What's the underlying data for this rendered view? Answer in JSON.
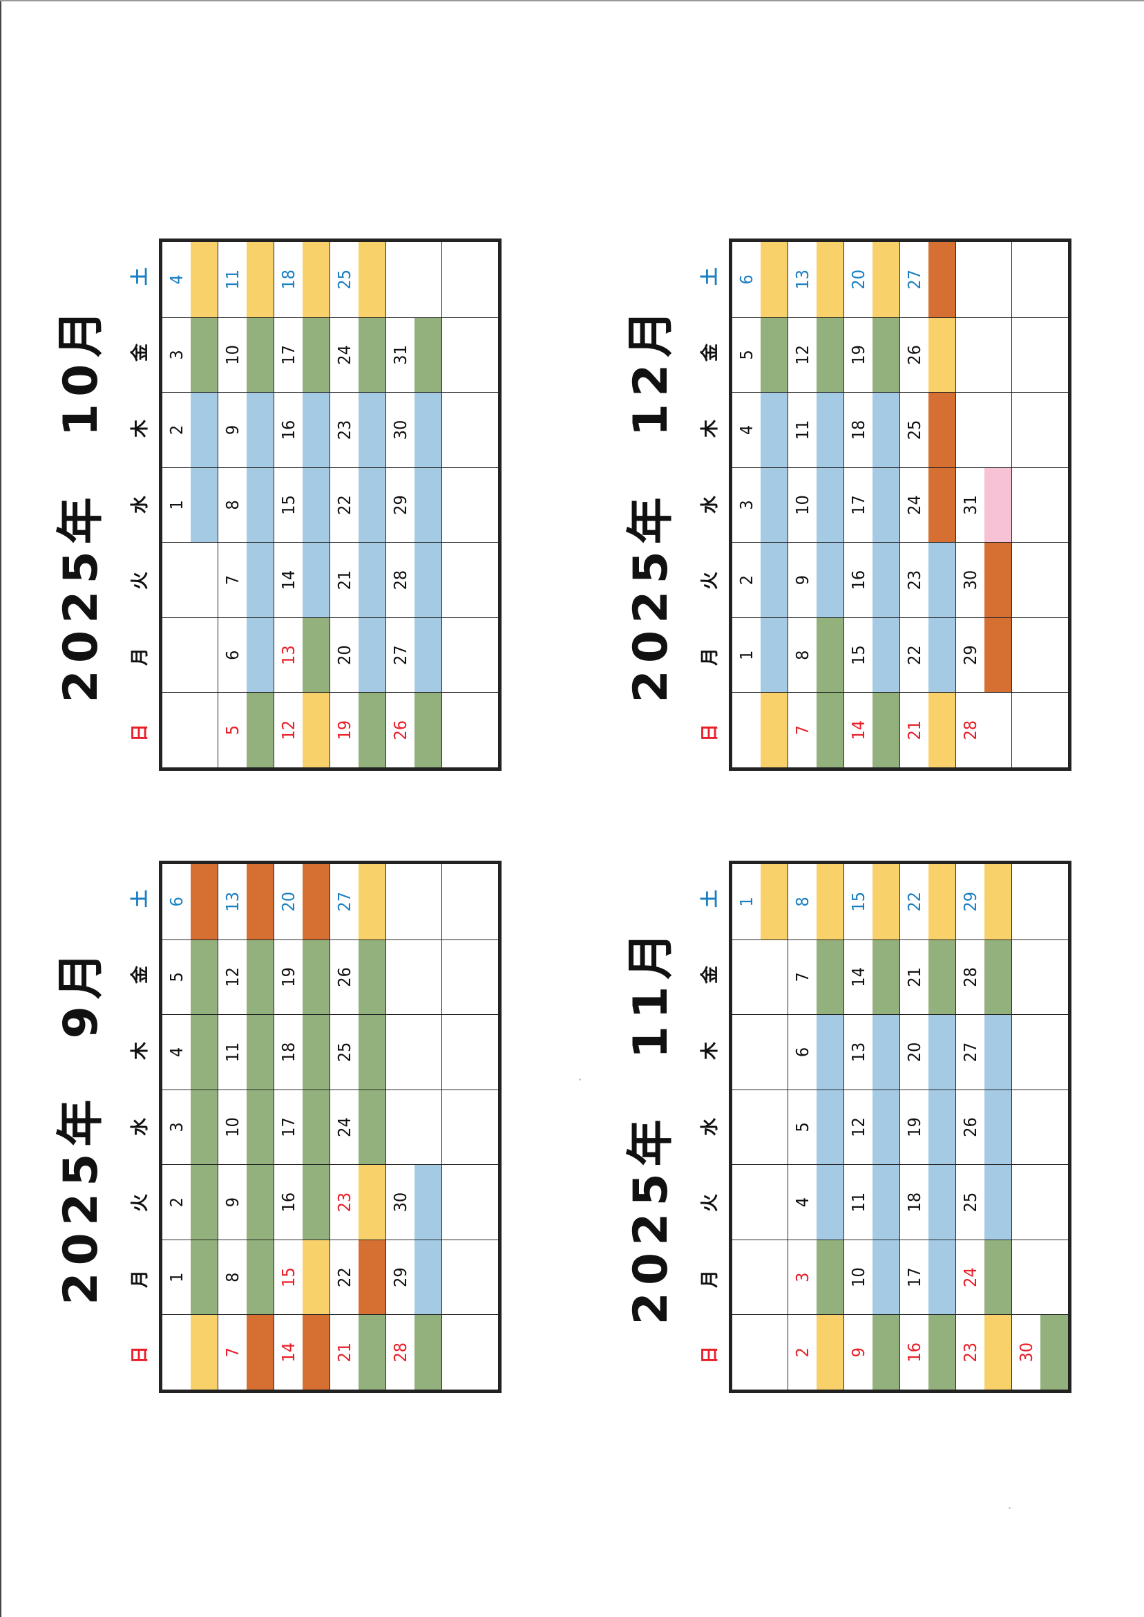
{
  "colors": {
    "G": "#93b17c",
    "B": "#a5cbe4",
    "Y": "#f9d16a",
    "O": "#d66f32",
    "P": "#f7c2d6",
    "W": "#ffffff",
    "sunday": "#e8202a",
    "saturday": "#1a7fc2"
  },
  "weekdays": [
    "日",
    "月",
    "火",
    "水",
    "木",
    "金",
    "土"
  ],
  "calendars": [
    {
      "title": "2025年　10月",
      "weeks": [
        {
          "days": [
            "",
            "",
            "",
            "1",
            "2",
            "3",
            "4"
          ],
          "text": [
            "B",
            "B",
            "B",
            "B",
            "B",
            "B",
            "S"
          ],
          "fills": [
            "W",
            "W",
            "W",
            "B",
            "B",
            "G",
            "Y"
          ]
        },
        {
          "days": [
            "5",
            "6",
            "7",
            "8",
            "9",
            "10",
            "11"
          ],
          "text": [
            "R",
            "K",
            "K",
            "K",
            "K",
            "K",
            "S"
          ],
          "fills": [
            "G",
            "B",
            "B",
            "B",
            "B",
            "G",
            "Y"
          ]
        },
        {
          "days": [
            "12",
            "13",
            "14",
            "15",
            "16",
            "17",
            "18"
          ],
          "text": [
            "R",
            "R",
            "K",
            "K",
            "K",
            "K",
            "S"
          ],
          "fills": [
            "Y",
            "G",
            "B",
            "B",
            "B",
            "G",
            "Y"
          ]
        },
        {
          "days": [
            "19",
            "20",
            "21",
            "22",
            "23",
            "24",
            "25"
          ],
          "text": [
            "R",
            "K",
            "K",
            "K",
            "K",
            "K",
            "S"
          ],
          "fills": [
            "G",
            "B",
            "B",
            "B",
            "B",
            "G",
            "Y"
          ]
        },
        {
          "days": [
            "26",
            "27",
            "28",
            "29",
            "30",
            "31",
            ""
          ],
          "text": [
            "R",
            "K",
            "K",
            "K",
            "K",
            "K",
            "K"
          ],
          "fills": [
            "G",
            "B",
            "B",
            "B",
            "B",
            "G",
            "W"
          ]
        },
        {
          "days": [
            "",
            "",
            "",
            "",
            "",
            "",
            ""
          ],
          "text": [
            "K",
            "K",
            "K",
            "K",
            "K",
            "K",
            "K"
          ],
          "fills": [
            "W",
            "W",
            "W",
            "W",
            "W",
            "W",
            "W"
          ]
        }
      ]
    },
    {
      "title": "2025年　9月",
      "weeks": [
        {
          "days": [
            "",
            "1",
            "2",
            "3",
            "4",
            "5",
            "6"
          ],
          "text": [
            "K",
            "K",
            "K",
            "K",
            "K",
            "K",
            "S"
          ],
          "fills": [
            "Y",
            "G",
            "G",
            "G",
            "G",
            "G",
            "O"
          ]
        },
        {
          "days": [
            "7",
            "8",
            "9",
            "10",
            "11",
            "12",
            "13"
          ],
          "text": [
            "R",
            "K",
            "K",
            "K",
            "K",
            "K",
            "S"
          ],
          "fills": [
            "O",
            "G",
            "G",
            "G",
            "G",
            "G",
            "O"
          ]
        },
        {
          "days": [
            "14",
            "15",
            "16",
            "17",
            "18",
            "19",
            "20"
          ],
          "text": [
            "R",
            "R",
            "K",
            "K",
            "K",
            "K",
            "S"
          ],
          "fills": [
            "O",
            "Y",
            "G",
            "G",
            "G",
            "G",
            "O"
          ]
        },
        {
          "days": [
            "21",
            "22",
            "23",
            "24",
            "25",
            "26",
            "27"
          ],
          "text": [
            "R",
            "K",
            "R",
            "K",
            "K",
            "K",
            "S"
          ],
          "fills": [
            "G",
            "O",
            "Y",
            "G",
            "G",
            "G",
            "Y"
          ]
        },
        {
          "days": [
            "28",
            "29",
            "30",
            "",
            "",
            "",
            ""
          ],
          "text": [
            "R",
            "K",
            "K",
            "K",
            "K",
            "K",
            "K"
          ],
          "fills": [
            "G",
            "B",
            "B",
            "W",
            "W",
            "W",
            "W"
          ]
        },
        {
          "days": [
            "",
            "",
            "",
            "",
            "",
            "",
            ""
          ],
          "text": [
            "K",
            "K",
            "K",
            "K",
            "K",
            "K",
            "K"
          ],
          "fills": [
            "W",
            "W",
            "W",
            "W",
            "W",
            "W",
            "W"
          ]
        }
      ]
    },
    {
      "title": "2025年　12月",
      "weeks": [
        {
          "days": [
            "",
            "1",
            "2",
            "3",
            "4",
            "5",
            "6"
          ],
          "text": [
            "K",
            "K",
            "K",
            "K",
            "K",
            "K",
            "S"
          ],
          "fills": [
            "Y",
            "B",
            "B",
            "B",
            "B",
            "G",
            "Y"
          ]
        },
        {
          "days": [
            "7",
            "8",
            "9",
            "10",
            "11",
            "12",
            "13"
          ],
          "text": [
            "R",
            "K",
            "K",
            "K",
            "K",
            "K",
            "S"
          ],
          "fills": [
            "G",
            "G",
            "B",
            "B",
            "B",
            "G",
            "Y"
          ]
        },
        {
          "days": [
            "14",
            "15",
            "16",
            "17",
            "18",
            "19",
            "20"
          ],
          "text": [
            "R",
            "K",
            "K",
            "K",
            "K",
            "K",
            "S"
          ],
          "fills": [
            "G",
            "B",
            "B",
            "B",
            "B",
            "G",
            "Y"
          ]
        },
        {
          "days": [
            "21",
            "22",
            "23",
            "24",
            "25",
            "26",
            "27"
          ],
          "text": [
            "R",
            "K",
            "K",
            "K",
            "K",
            "K",
            "S"
          ],
          "fills": [
            "Y",
            "B",
            "B",
            "O",
            "O",
            "Y",
            "O"
          ]
        },
        {
          "days": [
            "28",
            "29",
            "30",
            "31",
            "",
            "",
            ""
          ],
          "text": [
            "R",
            "K",
            "K",
            "K",
            "K",
            "K",
            "K"
          ],
          "fills": [
            "W",
            "O",
            "O",
            "P",
            "W",
            "W",
            "W"
          ]
        },
        {
          "days": [
            "",
            "",
            "",
            "",
            "",
            "",
            ""
          ],
          "text": [
            "K",
            "K",
            "K",
            "K",
            "K",
            "K",
            "K"
          ],
          "fills": [
            "W",
            "W",
            "W",
            "W",
            "W",
            "W",
            "W"
          ]
        }
      ]
    },
    {
      "title": "2025年　11月",
      "weeks": [
        {
          "days": [
            "",
            "",
            "",
            "",
            "",
            "",
            "1"
          ],
          "text": [
            "K",
            "K",
            "K",
            "K",
            "K",
            "K",
            "S"
          ],
          "fills": [
            "W",
            "W",
            "W",
            "W",
            "W",
            "W",
            "Y"
          ]
        },
        {
          "days": [
            "2",
            "3",
            "4",
            "5",
            "6",
            "7",
            "8"
          ],
          "text": [
            "R",
            "R",
            "K",
            "K",
            "K",
            "K",
            "S"
          ],
          "fills": [
            "Y",
            "G",
            "B",
            "B",
            "B",
            "G",
            "Y"
          ]
        },
        {
          "days": [
            "9",
            "10",
            "11",
            "12",
            "13",
            "14",
            "15"
          ],
          "text": [
            "R",
            "K",
            "K",
            "K",
            "K",
            "K",
            "S"
          ],
          "fills": [
            "G",
            "B",
            "B",
            "B",
            "B",
            "G",
            "Y"
          ]
        },
        {
          "days": [
            "16",
            "17",
            "18",
            "19",
            "20",
            "21",
            "22"
          ],
          "text": [
            "R",
            "K",
            "K",
            "K",
            "K",
            "K",
            "S"
          ],
          "fills": [
            "G",
            "B",
            "B",
            "B",
            "B",
            "G",
            "Y"
          ]
        },
        {
          "days": [
            "23",
            "24",
            "25",
            "26",
            "27",
            "28",
            "29"
          ],
          "text": [
            "R",
            "R",
            "K",
            "K",
            "K",
            "K",
            "S"
          ],
          "fills": [
            "Y",
            "G",
            "B",
            "B",
            "B",
            "G",
            "Y"
          ]
        },
        {
          "days": [
            "30",
            "",
            "",
            "",
            "",
            "",
            ""
          ],
          "text": [
            "R",
            "K",
            "K",
            "K",
            "K",
            "K",
            "K"
          ],
          "fills": [
            "G",
            "W",
            "W",
            "W",
            "W",
            "W",
            "W"
          ]
        }
      ]
    }
  ]
}
